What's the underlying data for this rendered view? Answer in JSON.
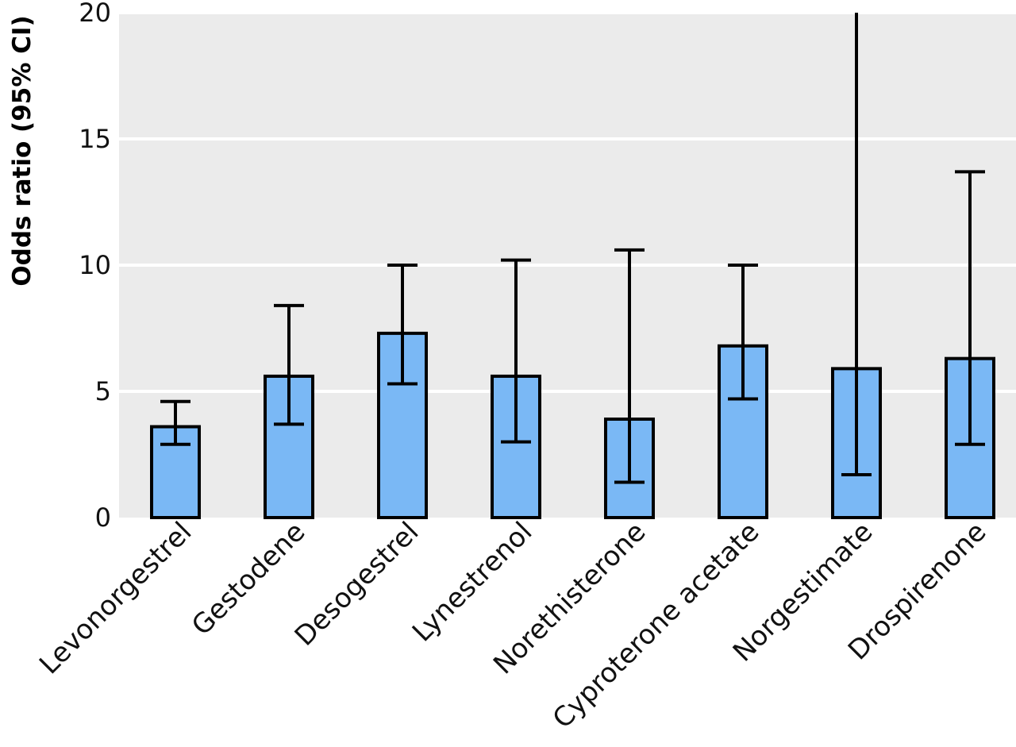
{
  "chart_data": {
    "type": "bar",
    "title": "",
    "xlabel": "",
    "ylabel": "Odds ratio (95% CI)",
    "categories": [
      "Levonorgestrel",
      "Gestodene",
      "Desogestrel",
      "Lynestrenol",
      "Norethisterone",
      "Cyproterone acetate",
      "Norgestimate",
      "Drospirenone"
    ],
    "values": [
      3.6,
      5.6,
      7.3,
      5.6,
      3.9,
      6.8,
      5.9,
      6.3
    ],
    "ci_lower": [
      2.9,
      3.7,
      5.3,
      3.0,
      1.4,
      4.7,
      1.7,
      2.9
    ],
    "ci_upper": [
      4.6,
      8.4,
      10.0,
      10.2,
      10.6,
      10.0,
      20,
      13.7
    ],
    "ylim": [
      0,
      20
    ],
    "yticks": [
      "0",
      "5",
      "10",
      "15",
      "20"
    ],
    "grid": true,
    "colors": {
      "bar_fill": "#7ab8f5",
      "bar_stroke": "#000000",
      "plot_background": "#ebebeb",
      "gridline": "#ffffff",
      "error_bar": "#000000"
    }
  }
}
